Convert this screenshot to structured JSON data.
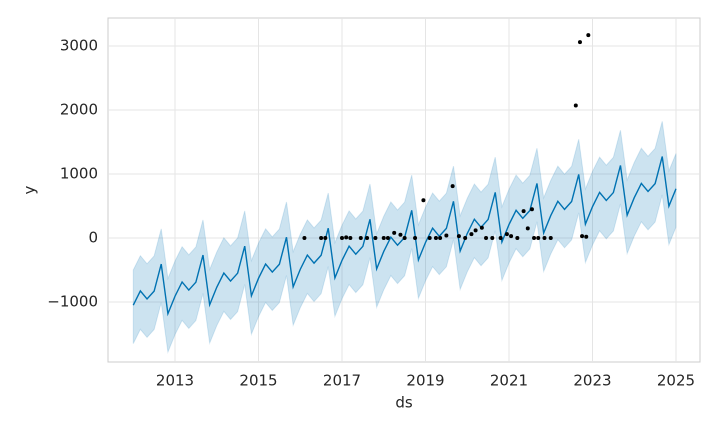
{
  "chart_data": {
    "type": "line",
    "x_label": "ds",
    "y_label": "y",
    "grid": true,
    "xlim": [
      2011.395,
      2025.575
    ],
    "ylim": [
      -1937.5,
      3437.5
    ],
    "xticks": [
      2013,
      2015,
      2017,
      2019,
      2021,
      2023,
      2025
    ],
    "yticks": [
      {
        "value": -1000,
        "label": "−1000"
      },
      0,
      1000,
      2000,
      3000
    ],
    "forecast": {
      "color": "#0072b2",
      "x": [
        2012,
        2012.17,
        2012.33,
        2012.5,
        2012.67,
        2012.83,
        2013,
        2013.17,
        2013.33,
        2013.5,
        2013.67,
        2013.83,
        2014,
        2014.17,
        2014.33,
        2014.5,
        2014.67,
        2014.83,
        2015,
        2015.17,
        2015.33,
        2015.5,
        2015.67,
        2015.83,
        2016,
        2016.17,
        2016.33,
        2016.5,
        2016.67,
        2016.83,
        2017,
        2017.17,
        2017.33,
        2017.5,
        2017.67,
        2017.83,
        2018,
        2018.17,
        2018.33,
        2018.5,
        2018.67,
        2018.83,
        2019,
        2019.17,
        2019.33,
        2019.5,
        2019.67,
        2019.83,
        2020,
        2020.17,
        2020.33,
        2020.5,
        2020.67,
        2020.83,
        2021,
        2021.17,
        2021.33,
        2021.5,
        2021.67,
        2021.83,
        2022,
        2022.17,
        2022.33,
        2022.5,
        2022.67,
        2022.83,
        2023,
        2023.17,
        2023.33,
        2023.5,
        2023.67,
        2023.83,
        2024,
        2024.17,
        2024.33,
        2024.5,
        2024.67,
        2024.83,
        2025
      ],
      "values": [
        -1050,
        -827,
        -953,
        -830,
        -407,
        -1183,
        -910,
        -687,
        -813,
        -690,
        -267,
        -1043,
        -770,
        -547,
        -673,
        -550,
        -127,
        -903,
        -630,
        -407,
        -533,
        -410,
        13,
        -763,
        -490,
        -267,
        -393,
        -270,
        153,
        -623,
        -350,
        -127,
        -253,
        -130,
        293,
        -483,
        -210,
        13,
        -113,
        10,
        433,
        -343,
        -70,
        153,
        27,
        150,
        573,
        -203,
        70,
        293,
        167,
        290,
        713,
        -63,
        210,
        433,
        307,
        430,
        853,
        77,
        350,
        573,
        447,
        570,
        993,
        217,
        490,
        713,
        587,
        710,
        1133,
        357,
        630,
        853,
        727,
        850,
        1273,
        497,
        770
      ],
      "lower": [
        -1650,
        -1427,
        -1553,
        -1430,
        -1007,
        -1783,
        -1510,
        -1287,
        -1413,
        -1290,
        -867,
        -1643,
        -1370,
        -1147,
        -1273,
        -1150,
        -727,
        -1503,
        -1230,
        -1007,
        -1133,
        -1010,
        -587,
        -1363,
        -1090,
        -867,
        -993,
        -870,
        -447,
        -1223,
        -950,
        -727,
        -853,
        -730,
        -307,
        -1083,
        -810,
        -587,
        -713,
        -590,
        -167,
        -943,
        -670,
        -447,
        -573,
        -450,
        -27,
        -803,
        -530,
        -307,
        -433,
        -310,
        113,
        -663,
        -390,
        -167,
        -293,
        -170,
        253,
        -523,
        -250,
        -27,
        -153,
        -30,
        393,
        -383,
        -110,
        113,
        -13,
        110,
        533,
        -243,
        30,
        253,
        127,
        250,
        673,
        -103,
        170
      ],
      "upper": [
        -500,
        -277,
        -403,
        -280,
        143,
        -633,
        -360,
        -137,
        -263,
        -140,
        283,
        -493,
        -220,
        3,
        -123,
        0,
        423,
        -353,
        -80,
        143,
        17,
        140,
        563,
        -213,
        60,
        283,
        157,
        280,
        703,
        -73,
        200,
        423,
        297,
        420,
        843,
        67,
        340,
        563,
        437,
        560,
        983,
        207,
        480,
        703,
        577,
        700,
        1123,
        347,
        620,
        843,
        717,
        840,
        1263,
        487,
        760,
        983,
        857,
        980,
        1403,
        627,
        900,
        1123,
        997,
        1120,
        1543,
        767,
        1040,
        1263,
        1137,
        1260,
        1683,
        907,
        1180,
        1403,
        1277,
        1400,
        1823,
        1047,
        1320
      ]
    },
    "observed": {
      "color": "#000000",
      "x": [
        2016.1,
        2016.5,
        2016.6,
        2017.0,
        2017.1,
        2017.2,
        2017.45,
        2017.6,
        2017.8,
        2018.0,
        2018.1,
        2018.25,
        2018.4,
        2018.5,
        2018.75,
        2018.95,
        2019.1,
        2019.25,
        2019.35,
        2019.5,
        2019.65,
        2019.8,
        2019.95,
        2020.1,
        2020.2,
        2020.35,
        2020.45,
        2020.6,
        2020.8,
        2020.95,
        2021.05,
        2021.2,
        2021.35,
        2021.45,
        2021.55,
        2021.6,
        2021.7,
        2021.85,
        2022.0,
        2022.6,
        2022.7,
        2022.75,
        2022.85,
        2022.9
      ],
      "values": [
        0,
        0,
        0,
        0,
        10,
        0,
        0,
        0,
        0,
        0,
        0,
        80,
        50,
        0,
        0,
        590,
        0,
        0,
        0,
        40,
        810,
        30,
        0,
        60,
        120,
        160,
        0,
        0,
        0,
        60,
        30,
        0,
        420,
        150,
        450,
        0,
        0,
        0,
        0,
        2070,
        3060,
        30,
        20,
        3170
      ]
    }
  }
}
